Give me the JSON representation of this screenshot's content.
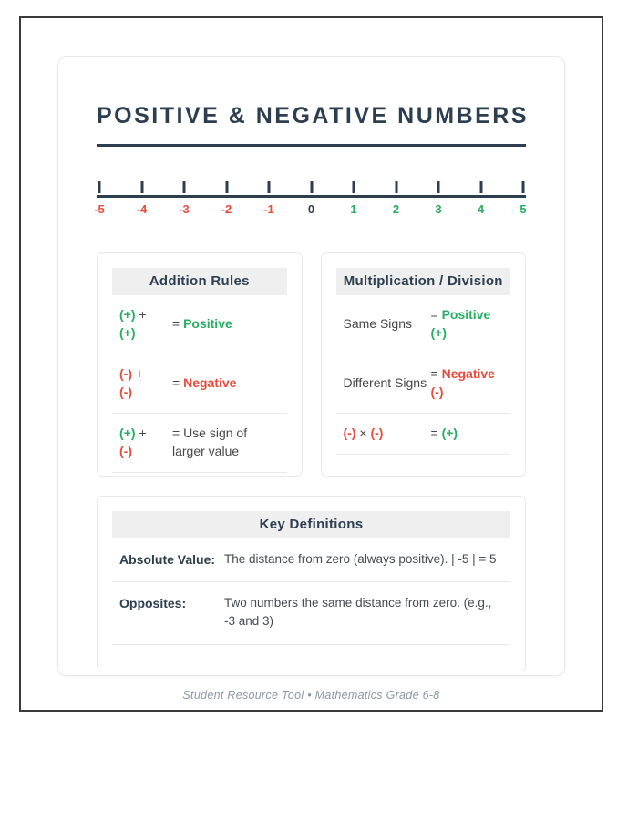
{
  "page": {
    "title": "POSITIVE & NEGATIVE NUMBERS",
    "footer": "Student Resource Tool • Mathematics Grade 6-8"
  },
  "theme": {
    "navy": "#2c3e50",
    "red": "#e74c3c",
    "green": "#27ae60",
    "text": "#474747",
    "muted": "#8b98a3",
    "header_bg": "#efefef",
    "border": "#e9e9e9"
  },
  "number_line": {
    "values": [
      {
        "label": "-5",
        "tone": "negative"
      },
      {
        "label": "-4",
        "tone": "negative"
      },
      {
        "label": "-3",
        "tone": "negative"
      },
      {
        "label": "-2",
        "tone": "negative"
      },
      {
        "label": "-1",
        "tone": "negative"
      },
      {
        "label": "0",
        "tone": "zero"
      },
      {
        "label": "1",
        "tone": "positive"
      },
      {
        "label": "2",
        "tone": "positive"
      },
      {
        "label": "3",
        "tone": "positive"
      },
      {
        "label": "4",
        "tone": "positive"
      },
      {
        "label": "5",
        "tone": "positive"
      }
    ]
  },
  "addition_card": {
    "title": "Addition Rules",
    "rows": [
      {
        "left": [
          {
            "text": "(+)",
            "tone": "green",
            "bold": true
          },
          {
            "text": " + ",
            "tone": "plain"
          },
          {
            "br": true
          },
          {
            "text": "(+)",
            "tone": "green",
            "bold": true
          }
        ],
        "right": [
          {
            "text": "= ",
            "tone": "plain"
          },
          {
            "text": "Positive",
            "tone": "green",
            "bold": true
          }
        ]
      },
      {
        "left": [
          {
            "text": "(-)",
            "tone": "red",
            "bold": true
          },
          {
            "text": " + ",
            "tone": "plain"
          },
          {
            "br": true
          },
          {
            "text": "(-)",
            "tone": "red",
            "bold": true
          }
        ],
        "right": [
          {
            "text": "= ",
            "tone": "plain"
          },
          {
            "text": "Negative",
            "tone": "red",
            "bold": true
          }
        ]
      },
      {
        "left": [
          {
            "text": "(+)",
            "tone": "green",
            "bold": true
          },
          {
            "text": " + ",
            "tone": "plain"
          },
          {
            "br": true
          },
          {
            "text": "(-)",
            "tone": "red",
            "bold": true
          }
        ],
        "right": [
          {
            "text": "= Use sign of",
            "tone": "plain"
          },
          {
            "br": true
          },
          {
            "text": "larger value",
            "tone": "plain"
          }
        ]
      }
    ]
  },
  "multiplication_card": {
    "title": "Multiplication / Division",
    "rows": [
      {
        "left": [
          {
            "text": "Same Signs",
            "tone": "plain"
          }
        ],
        "right": [
          {
            "text": "= ",
            "tone": "plain"
          },
          {
            "text": "Positive",
            "tone": "green",
            "bold": true
          },
          {
            "br": true
          },
          {
            "text": "(+)",
            "tone": "green",
            "bold": true
          }
        ]
      },
      {
        "left": [
          {
            "text": "Different Signs",
            "tone": "plain"
          }
        ],
        "right": [
          {
            "text": "= ",
            "tone": "plain"
          },
          {
            "text": "Negative",
            "tone": "red",
            "bold": true
          },
          {
            "br": true
          },
          {
            "text": "(-)",
            "tone": "red",
            "bold": true
          }
        ]
      },
      {
        "left": [
          {
            "text": "(-)",
            "tone": "red",
            "bold": true
          },
          {
            "text": " × ",
            "tone": "plain"
          },
          {
            "text": "(-)",
            "tone": "red",
            "bold": true
          }
        ],
        "right": [
          {
            "text": "= ",
            "tone": "plain"
          },
          {
            "text": "(+)",
            "tone": "green",
            "bold": true
          }
        ]
      }
    ]
  },
  "definitions_card": {
    "title": "Key Definitions",
    "rows": [
      {
        "term": "Absolute Value:",
        "definition": "The distance from zero (always positive). | -5 | = 5"
      },
      {
        "term": "Opposites:",
        "definition": "Two numbers the same distance from zero. (e.g., -3 and 3)"
      }
    ]
  }
}
